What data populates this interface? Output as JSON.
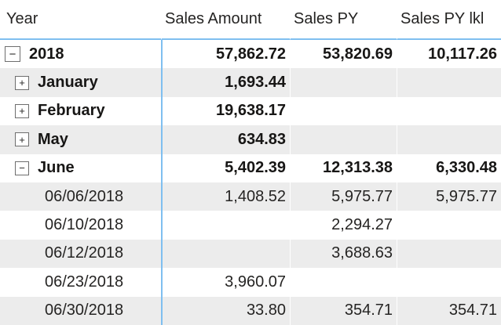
{
  "colors": {
    "accent_line": "#7fbff0",
    "band_row_bg": "#ececec",
    "text": "#252423",
    "toggle_border": "#6e6e6e"
  },
  "table": {
    "columns": [
      {
        "label": "Year",
        "align": "left"
      },
      {
        "label": "Sales Amount",
        "align": "right"
      },
      {
        "label": "Sales PY",
        "align": "right"
      },
      {
        "label": "Sales PY lkl",
        "align": "right"
      }
    ],
    "rows": [
      {
        "label": "2018",
        "level": 0,
        "toggle": "collapse",
        "toggle_glyph": "−",
        "bold": true,
        "shaded": false,
        "values": [
          "57,862.72",
          "53,820.69",
          "10,117.26"
        ]
      },
      {
        "label": "January",
        "level": 1,
        "toggle": "expand",
        "toggle_glyph": "+",
        "bold": true,
        "shaded": true,
        "values": [
          "1,693.44",
          "",
          ""
        ]
      },
      {
        "label": "February",
        "level": 1,
        "toggle": "expand",
        "toggle_glyph": "+",
        "bold": true,
        "shaded": false,
        "values": [
          "19,638.17",
          "",
          ""
        ]
      },
      {
        "label": "May",
        "level": 1,
        "toggle": "expand",
        "toggle_glyph": "+",
        "bold": true,
        "shaded": true,
        "values": [
          "634.83",
          "",
          ""
        ]
      },
      {
        "label": "June",
        "level": 1,
        "toggle": "collapse",
        "toggle_glyph": "−",
        "bold": true,
        "shaded": false,
        "values": [
          "5,402.39",
          "12,313.38",
          "6,330.48"
        ]
      },
      {
        "label": "06/06/2018",
        "level": 2,
        "toggle": null,
        "bold": false,
        "shaded": true,
        "values": [
          "1,408.52",
          "5,975.77",
          "5,975.77"
        ]
      },
      {
        "label": "06/10/2018",
        "level": 2,
        "toggle": null,
        "bold": false,
        "shaded": false,
        "values": [
          "",
          "2,294.27",
          ""
        ]
      },
      {
        "label": "06/12/2018",
        "level": 2,
        "toggle": null,
        "bold": false,
        "shaded": true,
        "values": [
          "",
          "3,688.63",
          ""
        ]
      },
      {
        "label": "06/23/2018",
        "level": 2,
        "toggle": null,
        "bold": false,
        "shaded": false,
        "values": [
          "3,960.07",
          "",
          ""
        ]
      },
      {
        "label": "06/30/2018",
        "level": 2,
        "toggle": null,
        "bold": false,
        "shaded": true,
        "values": [
          "33.80",
          "354.71",
          "354.71"
        ]
      }
    ]
  },
  "chart_data": {
    "type": "table",
    "title": "",
    "columns": [
      "Year",
      "Sales Amount",
      "Sales PY",
      "Sales PY lkl"
    ],
    "rows": [
      [
        "2018",
        57862.72,
        53820.69,
        10117.26
      ],
      [
        "January",
        1693.44,
        null,
        null
      ],
      [
        "February",
        19638.17,
        null,
        null
      ],
      [
        "May",
        634.83,
        null,
        null
      ],
      [
        "June",
        5402.39,
        12313.38,
        6330.48
      ],
      [
        "06/06/2018",
        1408.52,
        5975.77,
        5975.77
      ],
      [
        "06/10/2018",
        null,
        2294.27,
        null
      ],
      [
        "06/12/2018",
        null,
        3688.63,
        null
      ],
      [
        "06/23/2018",
        3960.07,
        null,
        null
      ],
      [
        "06/30/2018",
        33.8,
        354.71,
        354.71
      ]
    ],
    "hierarchy": {
      "2018": {
        "months": [
          "January",
          "February",
          "May",
          "June"
        ],
        "June_dates": [
          "06/06/2018",
          "06/10/2018",
          "06/12/2018",
          "06/23/2018",
          "06/30/2018"
        ]
      }
    },
    "layout": {
      "banded_rows": true,
      "row_label_indent_levels": 3,
      "gridline_color": "#7fbff0"
    }
  }
}
